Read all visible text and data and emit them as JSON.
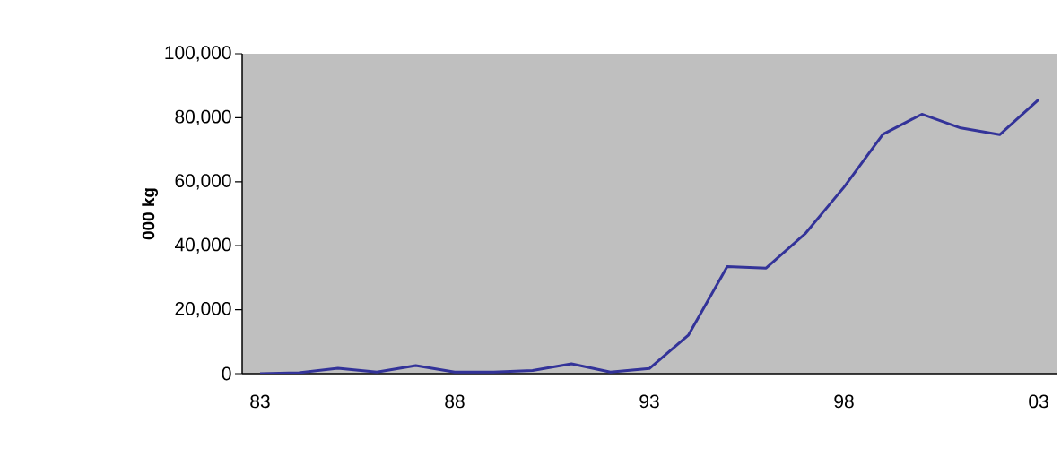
{
  "chart_data": {
    "type": "line",
    "ylabel": "000 kg",
    "categories": [
      "83",
      null,
      null,
      null,
      null,
      "88",
      null,
      null,
      null,
      null,
      "93",
      null,
      null,
      null,
      null,
      "98",
      null,
      null,
      null,
      null,
      "03"
    ],
    "series": [
      {
        "color": "#333399",
        "values": [
          0,
          300,
          1700,
          500,
          2500,
          500,
          500,
          1000,
          3100,
          500,
          1600,
          12000,
          33500,
          33000,
          43700,
          58300,
          74800,
          81100,
          76800,
          74700,
          85700
        ]
      }
    ],
    "ylim": [
      0,
      100000
    ],
    "yticks": [
      {
        "value": 0,
        "label": "0"
      },
      {
        "value": 20000,
        "label": "20,000"
      },
      {
        "value": 40000,
        "label": "40,000"
      },
      {
        "value": 60000,
        "label": "60,000"
      },
      {
        "value": 80000,
        "label": "80,000"
      },
      {
        "value": 100000,
        "label": "100,000"
      }
    ],
    "grid": false,
    "marker": "none",
    "line_style": "solid"
  }
}
